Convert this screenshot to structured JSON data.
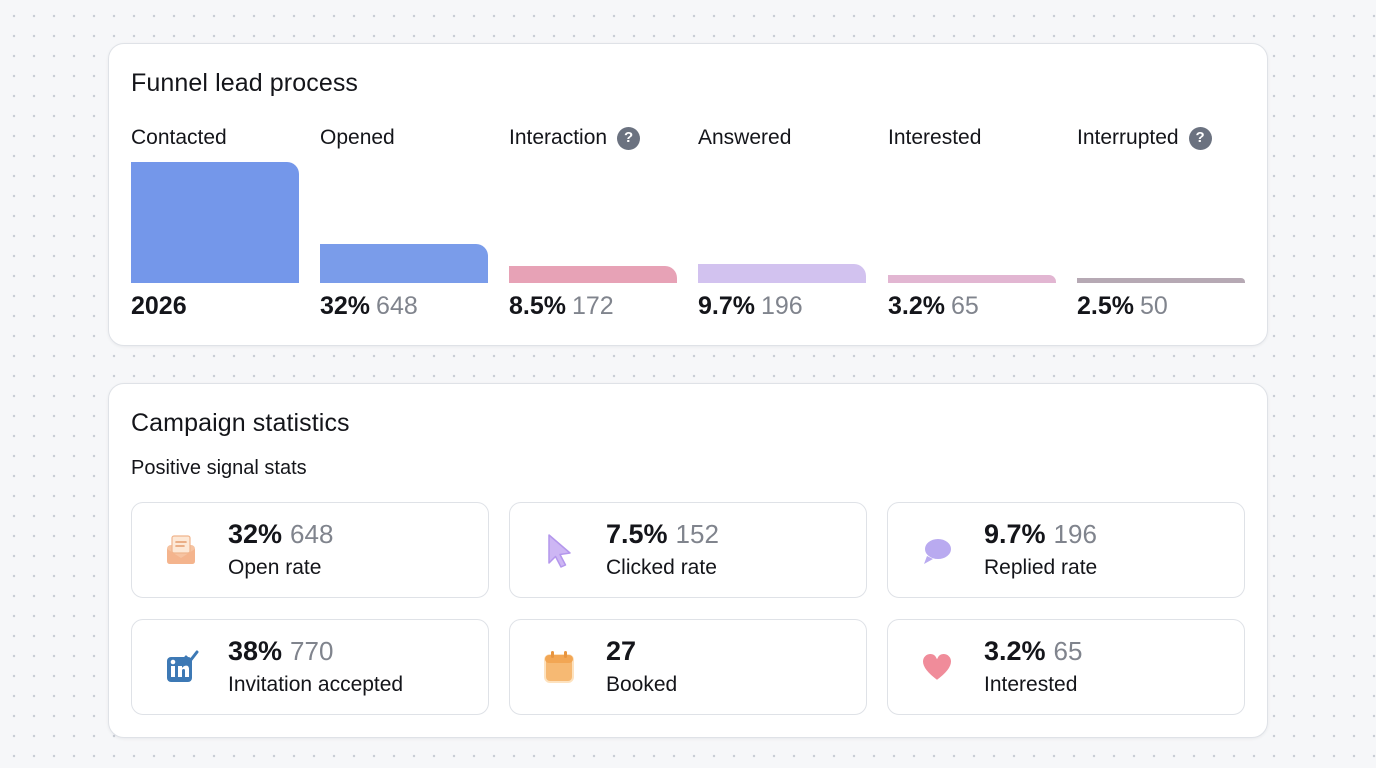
{
  "funnel": {
    "title": "Funnel lead process",
    "stages": [
      {
        "label": "Contacted",
        "percent": "",
        "count": "2026",
        "has_help": false,
        "share": 1.0,
        "color": "#7497ea"
      },
      {
        "label": "Opened",
        "percent": "32%",
        "count": "648",
        "has_help": false,
        "share": 0.32,
        "color": "#7a9cea"
      },
      {
        "label": "Interaction",
        "percent": "8.5%",
        "count": "172",
        "has_help": true,
        "share": 0.14,
        "color": "#e7a2b6"
      },
      {
        "label": "Answered",
        "percent": "9.7%",
        "count": "196",
        "has_help": false,
        "share": 0.16,
        "color": "#d2c2ef"
      },
      {
        "label": "Interested",
        "percent": "3.2%",
        "count": "65",
        "has_help": false,
        "share": 0.065,
        "color": "#e2b6d2"
      },
      {
        "label": "Interrupted",
        "percent": "2.5%",
        "count": "50",
        "has_help": true,
        "share": 0.045,
        "color": "#b6a9b4"
      }
    ],
    "help_glyph": "?"
  },
  "campaign": {
    "title": "Campaign statistics",
    "subtitle": "Positive signal stats",
    "tiles": [
      {
        "icon": "envelope-icon",
        "percent": "32%",
        "count": "648",
        "label": "Open rate"
      },
      {
        "icon": "cursor-icon",
        "percent": "7.5%",
        "count": "152",
        "label": "Clicked rate"
      },
      {
        "icon": "speech-bubble-icon",
        "percent": "9.7%",
        "count": "196",
        "label": "Replied rate"
      },
      {
        "icon": "linkedin-check-icon",
        "percent": "38%",
        "count": "770",
        "label": "Invitation accepted"
      },
      {
        "icon": "calendar-icon",
        "percent": "27",
        "count": "",
        "label": "Booked"
      },
      {
        "icon": "heart-icon",
        "percent": "3.2%",
        "count": "65",
        "label": "Interested"
      }
    ]
  },
  "colors": {
    "envelope": "#f6c3a1",
    "cursor": "#c9b0f2",
    "bubble": "#b9aaf0",
    "linkedin": "#3d79b5",
    "calendar": "#f6b973",
    "heart": "#f08c9a"
  }
}
